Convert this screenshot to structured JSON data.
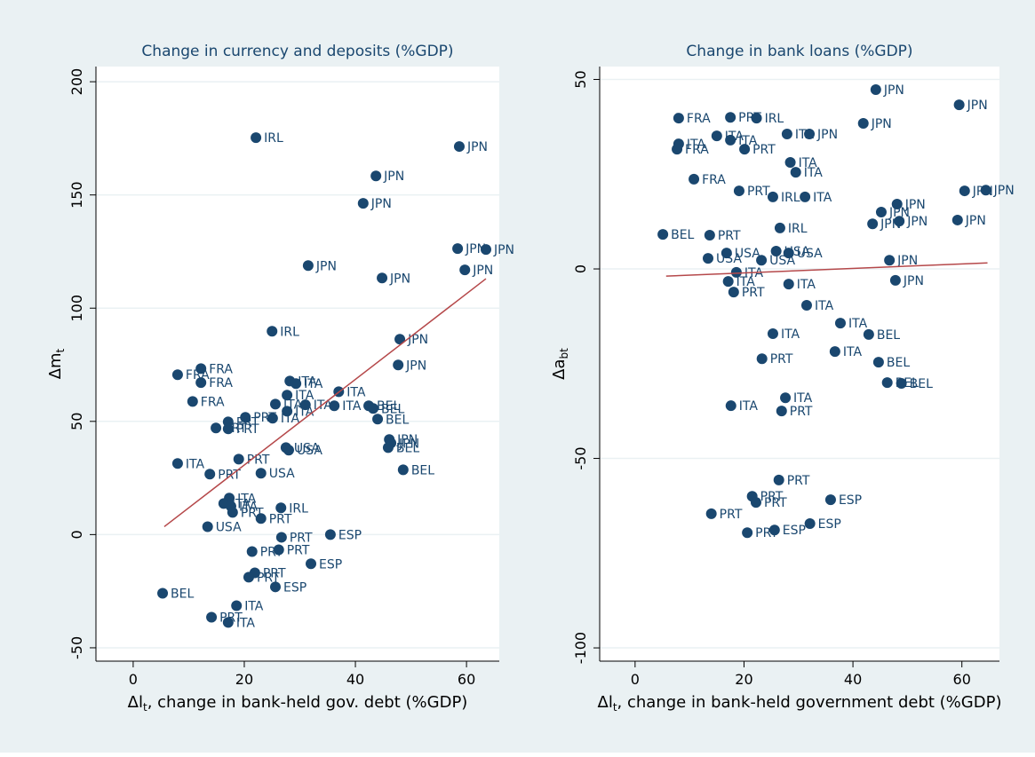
{
  "chart_data": [
    {
      "type": "scatter",
      "title": "Change in currency and deposits (%GDP)",
      "xlabel": {
        "text": "Δl",
        "sub": "t",
        "rest": ", change in bank-held gov. debt (%GDP)"
      },
      "ylabel": {
        "text": "Δm",
        "sub": "t"
      },
      "xlim": [
        -6.7,
        65.9
      ],
      "ylim": [
        -55.9,
        206.7
      ],
      "xticks": [
        0,
        20,
        40,
        60
      ],
      "yticks": [
        -50,
        0,
        50,
        100,
        150,
        200
      ],
      "grid": true,
      "color": "#1a476f",
      "fit_color": "#b5484a",
      "x": [
        22.1,
        58.7,
        43.7,
        41.4,
        58.4,
        63.5,
        59.7,
        31.5,
        44.8,
        25.0,
        48.0,
        47.7,
        8.0,
        12.2,
        12.2,
        10.7,
        28.2,
        29.3,
        37.0,
        27.7,
        25.6,
        31.0,
        36.2,
        27.7,
        25.1,
        42.4,
        43.2,
        44.0,
        20.2,
        17.1,
        14.9,
        17.1,
        46.1,
        46.4,
        45.9,
        27.5,
        28.0,
        8.0,
        19.0,
        13.8,
        23.0,
        48.6,
        17.3,
        16.3,
        17.6,
        17.9,
        26.6,
        23.0,
        13.4,
        26.7,
        35.5,
        21.4,
        26.2,
        32.0,
        21.9,
        20.8,
        25.6,
        5.3,
        18.6,
        14.1,
        17.1
      ],
      "values": [
        175.3,
        171.4,
        158.4,
        146.3,
        126.3,
        125.9,
        116.9,
        118.8,
        113.3,
        89.8,
        86.3,
        74.9,
        70.6,
        73.3,
        67.1,
        58.8,
        67.8,
        66.7,
        63.1,
        61.6,
        57.6,
        57.3,
        56.9,
        54.5,
        51.4,
        56.9,
        55.7,
        51.0,
        51.8,
        49.8,
        47.1,
        46.7,
        42.0,
        40.4,
        38.4,
        38.4,
        37.3,
        31.4,
        33.3,
        26.7,
        27.1,
        28.6,
        16.1,
        13.7,
        12.5,
        9.8,
        11.8,
        7.1,
        3.5,
        -1.2,
        0,
        -7.5,
        -6.7,
        -12.9,
        -16.9,
        -18.8,
        -23.1,
        -25.9,
        -31.4,
        -36.5,
        -38.8
      ],
      "labels": [
        "IRL",
        "JPN",
        "JPN",
        "JPN",
        "JPN",
        "JPN",
        "JPN",
        "JPN",
        "JPN",
        "IRL",
        "JPN",
        "JPN",
        "FRA",
        "FRA",
        "FRA",
        "FRA",
        "ITA",
        "ITA",
        "ITA",
        "ITA",
        "ITA",
        "ITA",
        "ITA",
        "ITA",
        "ITA",
        "BEL",
        "BEL",
        "BEL",
        "PRT",
        "PRT",
        "PRT",
        "PRT",
        "JPN",
        "JPN",
        "BEL",
        "USA",
        "USA",
        "ITA",
        "PRT",
        "PRT",
        "USA",
        "BEL",
        "ITA",
        "ITA",
        "ITA",
        "PRT",
        "IRL",
        "PRT",
        "USA",
        "PRT",
        "ESP",
        "PRT",
        "PRT",
        "ESP",
        "PRT",
        "PRT",
        "ESP",
        "BEL",
        "ITA",
        "PRT",
        "ITA"
      ],
      "fit": {
        "x": [
          5.6,
          63.5
        ],
        "values": [
          3.5,
          113
        ]
      }
    },
    {
      "type": "scatter",
      "title": "Change in bank loans (%GDP)",
      "xlabel": {
        "text": "Δl",
        "sub": "t",
        "rest": ", change in bank-held government debt (%GDP)"
      },
      "ylabel": {
        "text": "Δa",
        "sub": "bt"
      },
      "xlim": [
        -6.5,
        66.9
      ],
      "ylim": [
        -103.5,
        53.4
      ],
      "xticks": [
        0,
        20,
        40,
        60
      ],
      "yticks": [
        -100,
        -50,
        0,
        50
      ],
      "grid": true,
      "color": "#1a476f",
      "fit_color": "#b5484a",
      "x": [
        44.2,
        59.5,
        8.0,
        17.5,
        22.3,
        41.9,
        27.9,
        32.0,
        15.0,
        8.0,
        17.5,
        7.7,
        20.1,
        28.5,
        29.5,
        10.8,
        19.1,
        25.3,
        31.2,
        60.5,
        64.4,
        48.1,
        45.2,
        43.6,
        48.5,
        59.2,
        26.6,
        5.1,
        13.7,
        16.8,
        25.9,
        28.2,
        13.4,
        23.2,
        46.7,
        18.6,
        17.1,
        47.8,
        28.2,
        18.1,
        31.5,
        37.7,
        25.3,
        42.9,
        36.7,
        23.3,
        44.7,
        46.3,
        48.9,
        27.6,
        17.6,
        26.9,
        26.4,
        21.5,
        22.2,
        35.9,
        14.0,
        32.1,
        25.6,
        20.6
      ],
      "values": [
        47.3,
        43.3,
        39.8,
        40.0,
        39.8,
        38.4,
        35.6,
        35.6,
        35.1,
        33.0,
        34.0,
        31.6,
        31.6,
        28.1,
        25.5,
        23.7,
        20.6,
        19.0,
        19.0,
        20.6,
        20.8,
        17.1,
        15.0,
        11.9,
        12.6,
        12.9,
        10.8,
        9.1,
        8.9,
        4.2,
        4.7,
        4.2,
        2.8,
        2.3,
        2.3,
        -0.9,
        -3.3,
        -3.0,
        -4.0,
        -6.1,
        -9.6,
        -14.3,
        -17.1,
        -17.3,
        -21.8,
        -23.7,
        -24.6,
        -30.0,
        -30.2,
        -34.0,
        -36.1,
        -37.5,
        -55.7,
        -60.0,
        -61.6,
        -60.9,
        -64.6,
        -67.2,
        -68.9,
        -69.6
      ],
      "labels": [
        "JPN",
        "JPN",
        "FRA",
        "PRT",
        "IRL",
        "JPN",
        "ITA",
        "JPN",
        "ITA",
        "ITA",
        "ITA",
        "FRA",
        "PRT",
        "ITA",
        "ITA",
        "FRA",
        "PRT",
        "IRL",
        "ITA",
        "JPN",
        "JPN",
        "JPN",
        "JPN",
        "JPN",
        "JPN",
        "JPN",
        "IRL",
        "BEL",
        "PRT",
        "USA",
        "USA",
        "USA",
        "USA",
        "USA",
        "JPN",
        "ITA",
        "ITA",
        "JPN",
        "ITA",
        "PRT",
        "ITA",
        "ITA",
        "ITA",
        "BEL",
        "ITA",
        "PRT",
        "BEL",
        "BEL",
        "BEL",
        "ITA",
        "ITA",
        "PRT",
        "PRT",
        "PRT",
        "PRT",
        "ESP",
        "PRT",
        "ESP",
        "ESP",
        "PRT"
      ],
      "fit": {
        "x": [
          5.7,
          64.7
        ],
        "values": [
          -1.9,
          1.6
        ]
      }
    }
  ]
}
